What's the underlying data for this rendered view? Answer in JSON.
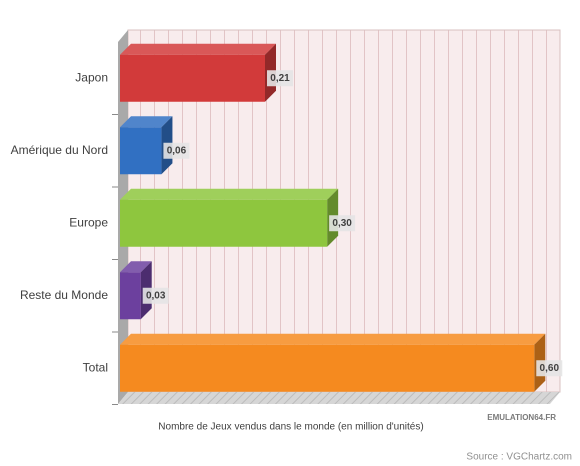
{
  "chart_data": {
    "type": "bar",
    "orientation": "horizontal",
    "categories": [
      "Japon",
      "Amérique du Nord",
      "Europe",
      "Reste du Monde",
      "Total"
    ],
    "values": [
      0.21,
      0.06,
      0.3,
      0.03,
      0.6
    ],
    "value_labels": [
      "0,21",
      "0,06",
      "0,30",
      "0,03",
      "0,60"
    ],
    "colors": [
      "#d23a3a",
      "#3170c2",
      "#8ec63e",
      "#6c409e",
      "#f58a1f"
    ],
    "xlim": [
      0,
      0.63
    ],
    "xlabel": "Nombre de Jeux vendus dans le monde (en million d'unités)",
    "watermark": "EMULATION64.FR",
    "source": "Source : VGChartz.com"
  }
}
